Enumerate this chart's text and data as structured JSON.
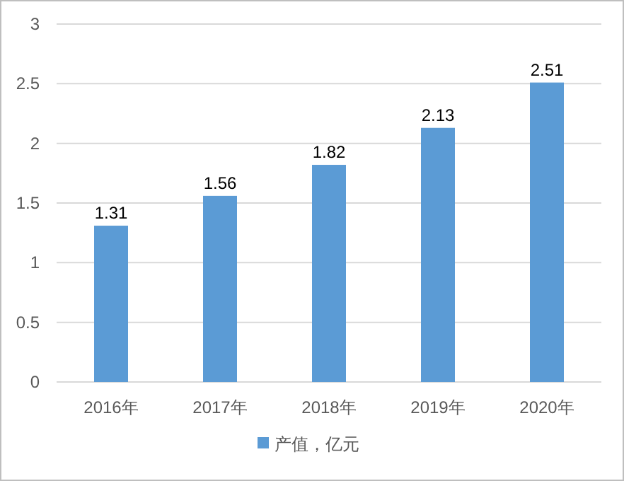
{
  "chart_data": {
    "type": "bar",
    "categories": [
      "2016年",
      "2017年",
      "2018年",
      "2019年",
      "2020年"
    ],
    "series": [
      {
        "name": "产值，亿元",
        "color": "#5b9bd5",
        "values": [
          1.31,
          1.56,
          1.82,
          2.13,
          2.51
        ]
      }
    ],
    "ylim": [
      0,
      3
    ],
    "yticks": [
      0,
      0.5,
      1,
      1.5,
      2,
      2.5,
      3
    ],
    "grid": "y",
    "legend": "bottom",
    "data_labels": true
  }
}
